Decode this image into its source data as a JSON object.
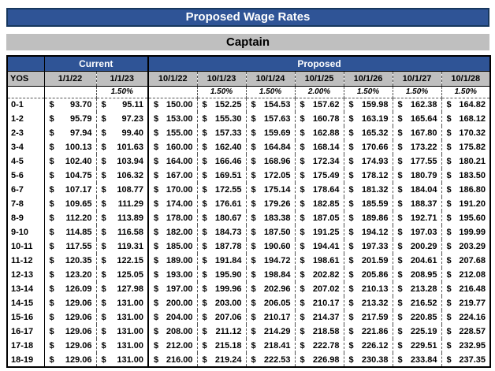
{
  "title_banner": {
    "text": "Proposed Wage Rates"
  },
  "subtitle_banner": {
    "text": "Captain"
  },
  "wage_table": {
    "group_headers": {
      "current": "Current",
      "proposed": "Proposed"
    },
    "yos_header": "YOS",
    "date_headers": [
      "1/1/22",
      "1/1/23",
      "10/1/22",
      "10/1/23",
      "10/1/24",
      "10/1/25",
      "10/1/26",
      "10/1/27",
      "10/1/28"
    ],
    "increase_percents": [
      "",
      "1.50%",
      "",
      "1.50%",
      "1.50%",
      "2.00%",
      "1.50%",
      "1.50%",
      "1.50%"
    ],
    "currency_symbol": "$",
    "rows": [
      {
        "yos": "0-1",
        "values": [
          "93.70",
          "95.11",
          "150.00",
          "152.25",
          "154.53",
          "157.62",
          "159.98",
          "162.38",
          "164.82"
        ]
      },
      {
        "yos": "1-2",
        "values": [
          "95.79",
          "97.23",
          "153.00",
          "155.30",
          "157.63",
          "160.78",
          "163.19",
          "165.64",
          "168.12"
        ]
      },
      {
        "yos": "2-3",
        "values": [
          "97.94",
          "99.40",
          "155.00",
          "157.33",
          "159.69",
          "162.88",
          "165.32",
          "167.80",
          "170.32"
        ]
      },
      {
        "yos": "3-4",
        "values": [
          "100.13",
          "101.63",
          "160.00",
          "162.40",
          "164.84",
          "168.14",
          "170.66",
          "173.22",
          "175.82"
        ]
      },
      {
        "yos": "4-5",
        "values": [
          "102.40",
          "103.94",
          "164.00",
          "166.46",
          "168.96",
          "172.34",
          "174.93",
          "177.55",
          "180.21"
        ]
      },
      {
        "yos": "5-6",
        "values": [
          "104.75",
          "106.32",
          "167.00",
          "169.51",
          "172.05",
          "175.49",
          "178.12",
          "180.79",
          "183.50"
        ]
      },
      {
        "yos": "6-7",
        "values": [
          "107.17",
          "108.77",
          "170.00",
          "172.55",
          "175.14",
          "178.64",
          "181.32",
          "184.04",
          "186.80"
        ]
      },
      {
        "yos": "7-8",
        "values": [
          "109.65",
          "111.29",
          "174.00",
          "176.61",
          "179.26",
          "182.85",
          "185.59",
          "188.37",
          "191.20"
        ]
      },
      {
        "yos": "8-9",
        "values": [
          "112.20",
          "113.89",
          "178.00",
          "180.67",
          "183.38",
          "187.05",
          "189.86",
          "192.71",
          "195.60"
        ]
      },
      {
        "yos": "9-10",
        "values": [
          "114.85",
          "116.58",
          "182.00",
          "184.73",
          "187.50",
          "191.25",
          "194.12",
          "197.03",
          "199.99"
        ]
      },
      {
        "yos": "10-11",
        "values": [
          "117.55",
          "119.31",
          "185.00",
          "187.78",
          "190.60",
          "194.41",
          "197.33",
          "200.29",
          "203.29"
        ]
      },
      {
        "yos": "11-12",
        "values": [
          "120.35",
          "122.15",
          "189.00",
          "191.84",
          "194.72",
          "198.61",
          "201.59",
          "204.61",
          "207.68"
        ]
      },
      {
        "yos": "12-13",
        "values": [
          "123.20",
          "125.05",
          "193.00",
          "195.90",
          "198.84",
          "202.82",
          "205.86",
          "208.95",
          "212.08"
        ]
      },
      {
        "yos": "13-14",
        "values": [
          "126.09",
          "127.98",
          "197.00",
          "199.96",
          "202.96",
          "207.02",
          "210.13",
          "213.28",
          "216.48"
        ]
      },
      {
        "yos": "14-15",
        "values": [
          "129.06",
          "131.00",
          "200.00",
          "203.00",
          "206.05",
          "210.17",
          "213.32",
          "216.52",
          "219.77"
        ]
      },
      {
        "yos": "15-16",
        "values": [
          "129.06",
          "131.00",
          "204.00",
          "207.06",
          "210.17",
          "214.37",
          "217.59",
          "220.85",
          "224.16"
        ]
      },
      {
        "yos": "16-17",
        "values": [
          "129.06",
          "131.00",
          "208.00",
          "211.12",
          "214.29",
          "218.58",
          "221.86",
          "225.19",
          "228.57"
        ]
      },
      {
        "yos": "17-18",
        "values": [
          "129.06",
          "131.00",
          "212.00",
          "215.18",
          "218.41",
          "222.78",
          "226.12",
          "229.51",
          "232.95"
        ]
      },
      {
        "yos": "18-19",
        "values": [
          "129.06",
          "131.00",
          "216.00",
          "219.24",
          "222.53",
          "226.98",
          "230.38",
          "233.84",
          "237.35"
        ]
      }
    ]
  },
  "colors": {
    "banner_blue": "#2F5496",
    "banner_border": "#17375E",
    "banner_gray": "#BFBFBF",
    "header_gray": "#BFBFBF",
    "banner_text": "#FFFFFF",
    "table_text": "#000000"
  }
}
